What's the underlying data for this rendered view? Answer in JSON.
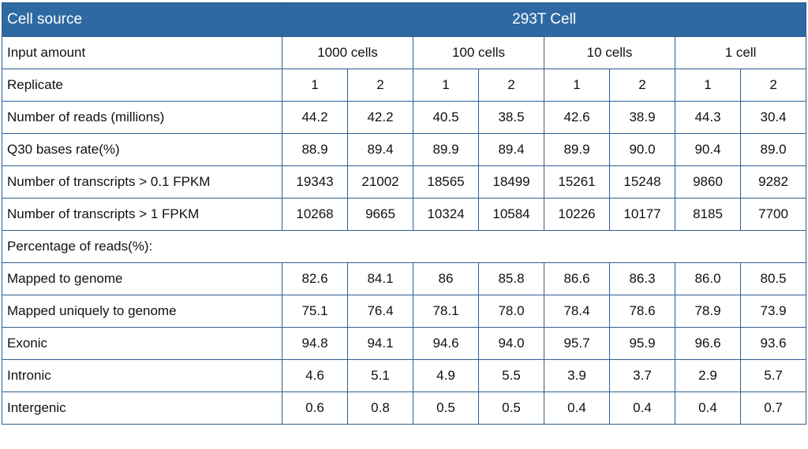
{
  "header": {
    "source_label": "Cell source",
    "title": "293T Cell"
  },
  "input_row": {
    "label": "Input amount",
    "groups": [
      "1000 cells",
      "100 cells",
      "10 cells",
      "1 cell"
    ]
  },
  "replicate_row": {
    "label": "Replicate",
    "values": [
      "1",
      "2",
      "1",
      "2",
      "1",
      "2",
      "1",
      "2"
    ]
  },
  "rows_top": [
    {
      "label": "Number of reads (millions)",
      "values": [
        "44.2",
        "42.2",
        "40.5",
        "38.5",
        "42.6",
        "38.9",
        "44.3",
        "30.4"
      ]
    },
    {
      "label": "Q30 bases rate(%)",
      "values": [
        "88.9",
        "89.4",
        "89.9",
        "89.4",
        "89.9",
        "90.0",
        "90.4",
        "89.0"
      ]
    },
    {
      "label": "Number of transcripts > 0.1 FPKM",
      "values": [
        "19343",
        "21002",
        "18565",
        "18499",
        "15261",
        "15248",
        "9860",
        "9282"
      ]
    },
    {
      "label": "Number of transcripts > 1 FPKM",
      "values": [
        "10268",
        "9665",
        "10324",
        "10584",
        "10226",
        "10177",
        "8185",
        "7700"
      ]
    }
  ],
  "section_label": "Percentage of reads(%):",
  "rows_bottom": [
    {
      "label": "Mapped to genome",
      "values": [
        "82.6",
        "84.1",
        "86",
        "85.8",
        "86.6",
        "86.3",
        "86.0",
        "80.5"
      ]
    },
    {
      "label": "Mapped uniquely to genome",
      "values": [
        "75.1",
        "76.4",
        "78.1",
        "78.0",
        "78.4",
        "78.6",
        "78.9",
        "73.9"
      ]
    },
    {
      "label": "Exonic",
      "values": [
        "94.8",
        "94.1",
        "94.6",
        "94.0",
        "95.7",
        "95.9",
        "96.6",
        "93.6"
      ]
    },
    {
      "label": "Intronic",
      "values": [
        "4.6",
        "5.1",
        "4.9",
        "5.5",
        "3.9",
        "3.7",
        "2.9",
        "5.7"
      ]
    },
    {
      "label": "Intergenic",
      "values": [
        "0.6",
        "0.8",
        "0.5",
        "0.5",
        "0.4",
        "0.4",
        "0.4",
        "0.7"
      ]
    }
  ],
  "colors": {
    "header_bg": "#2e69a3",
    "header_text": "#ffffff",
    "border": "#2f5f91",
    "text": "#111111"
  }
}
